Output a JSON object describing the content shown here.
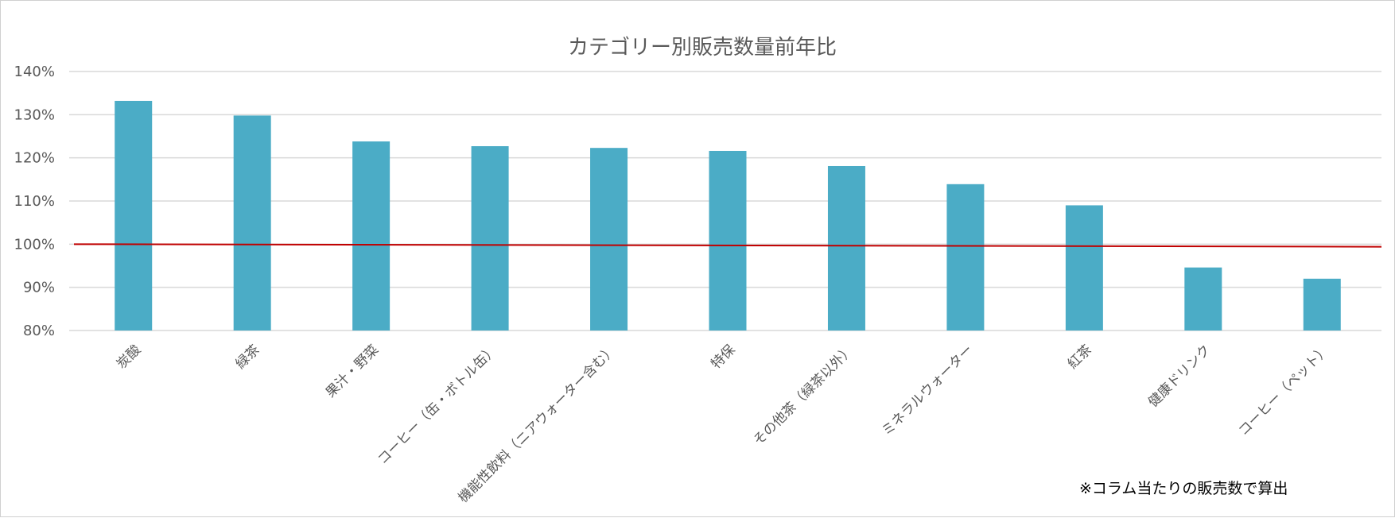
{
  "chart_data": {
    "type": "bar",
    "title": "カテゴリー別販売数量前年比",
    "xlabel": "",
    "ylabel": "",
    "ylim": [
      80,
      140
    ],
    "yticks": [
      80,
      90,
      100,
      110,
      120,
      130,
      140
    ],
    "ytick_labels": [
      "80%",
      "90%",
      "100%",
      "110%",
      "120%",
      "130%",
      "140%"
    ],
    "categories": [
      "炭酸",
      "緑茶",
      "果汁・野菜",
      "コーヒー（缶・ボトル缶）",
      "機能性飲料（ニアウォーター含む）",
      "特保",
      "その他茶（緑茶以外）",
      "ミネラルウォーター",
      "紅茶",
      "健康ドリンク",
      "コーヒー（ペット）"
    ],
    "values": [
      133.2,
      129.8,
      123.8,
      122.7,
      122.3,
      121.6,
      118.1,
      113.9,
      109.0,
      94.6,
      92.0
    ],
    "reference_line": {
      "start": 100.0,
      "end": 99.4
    },
    "bar_color": "#4BACC6",
    "reference_color": "#C00000",
    "grid": true,
    "legend": "none",
    "footnote": "※コラム当たりの販売数で算出"
  }
}
